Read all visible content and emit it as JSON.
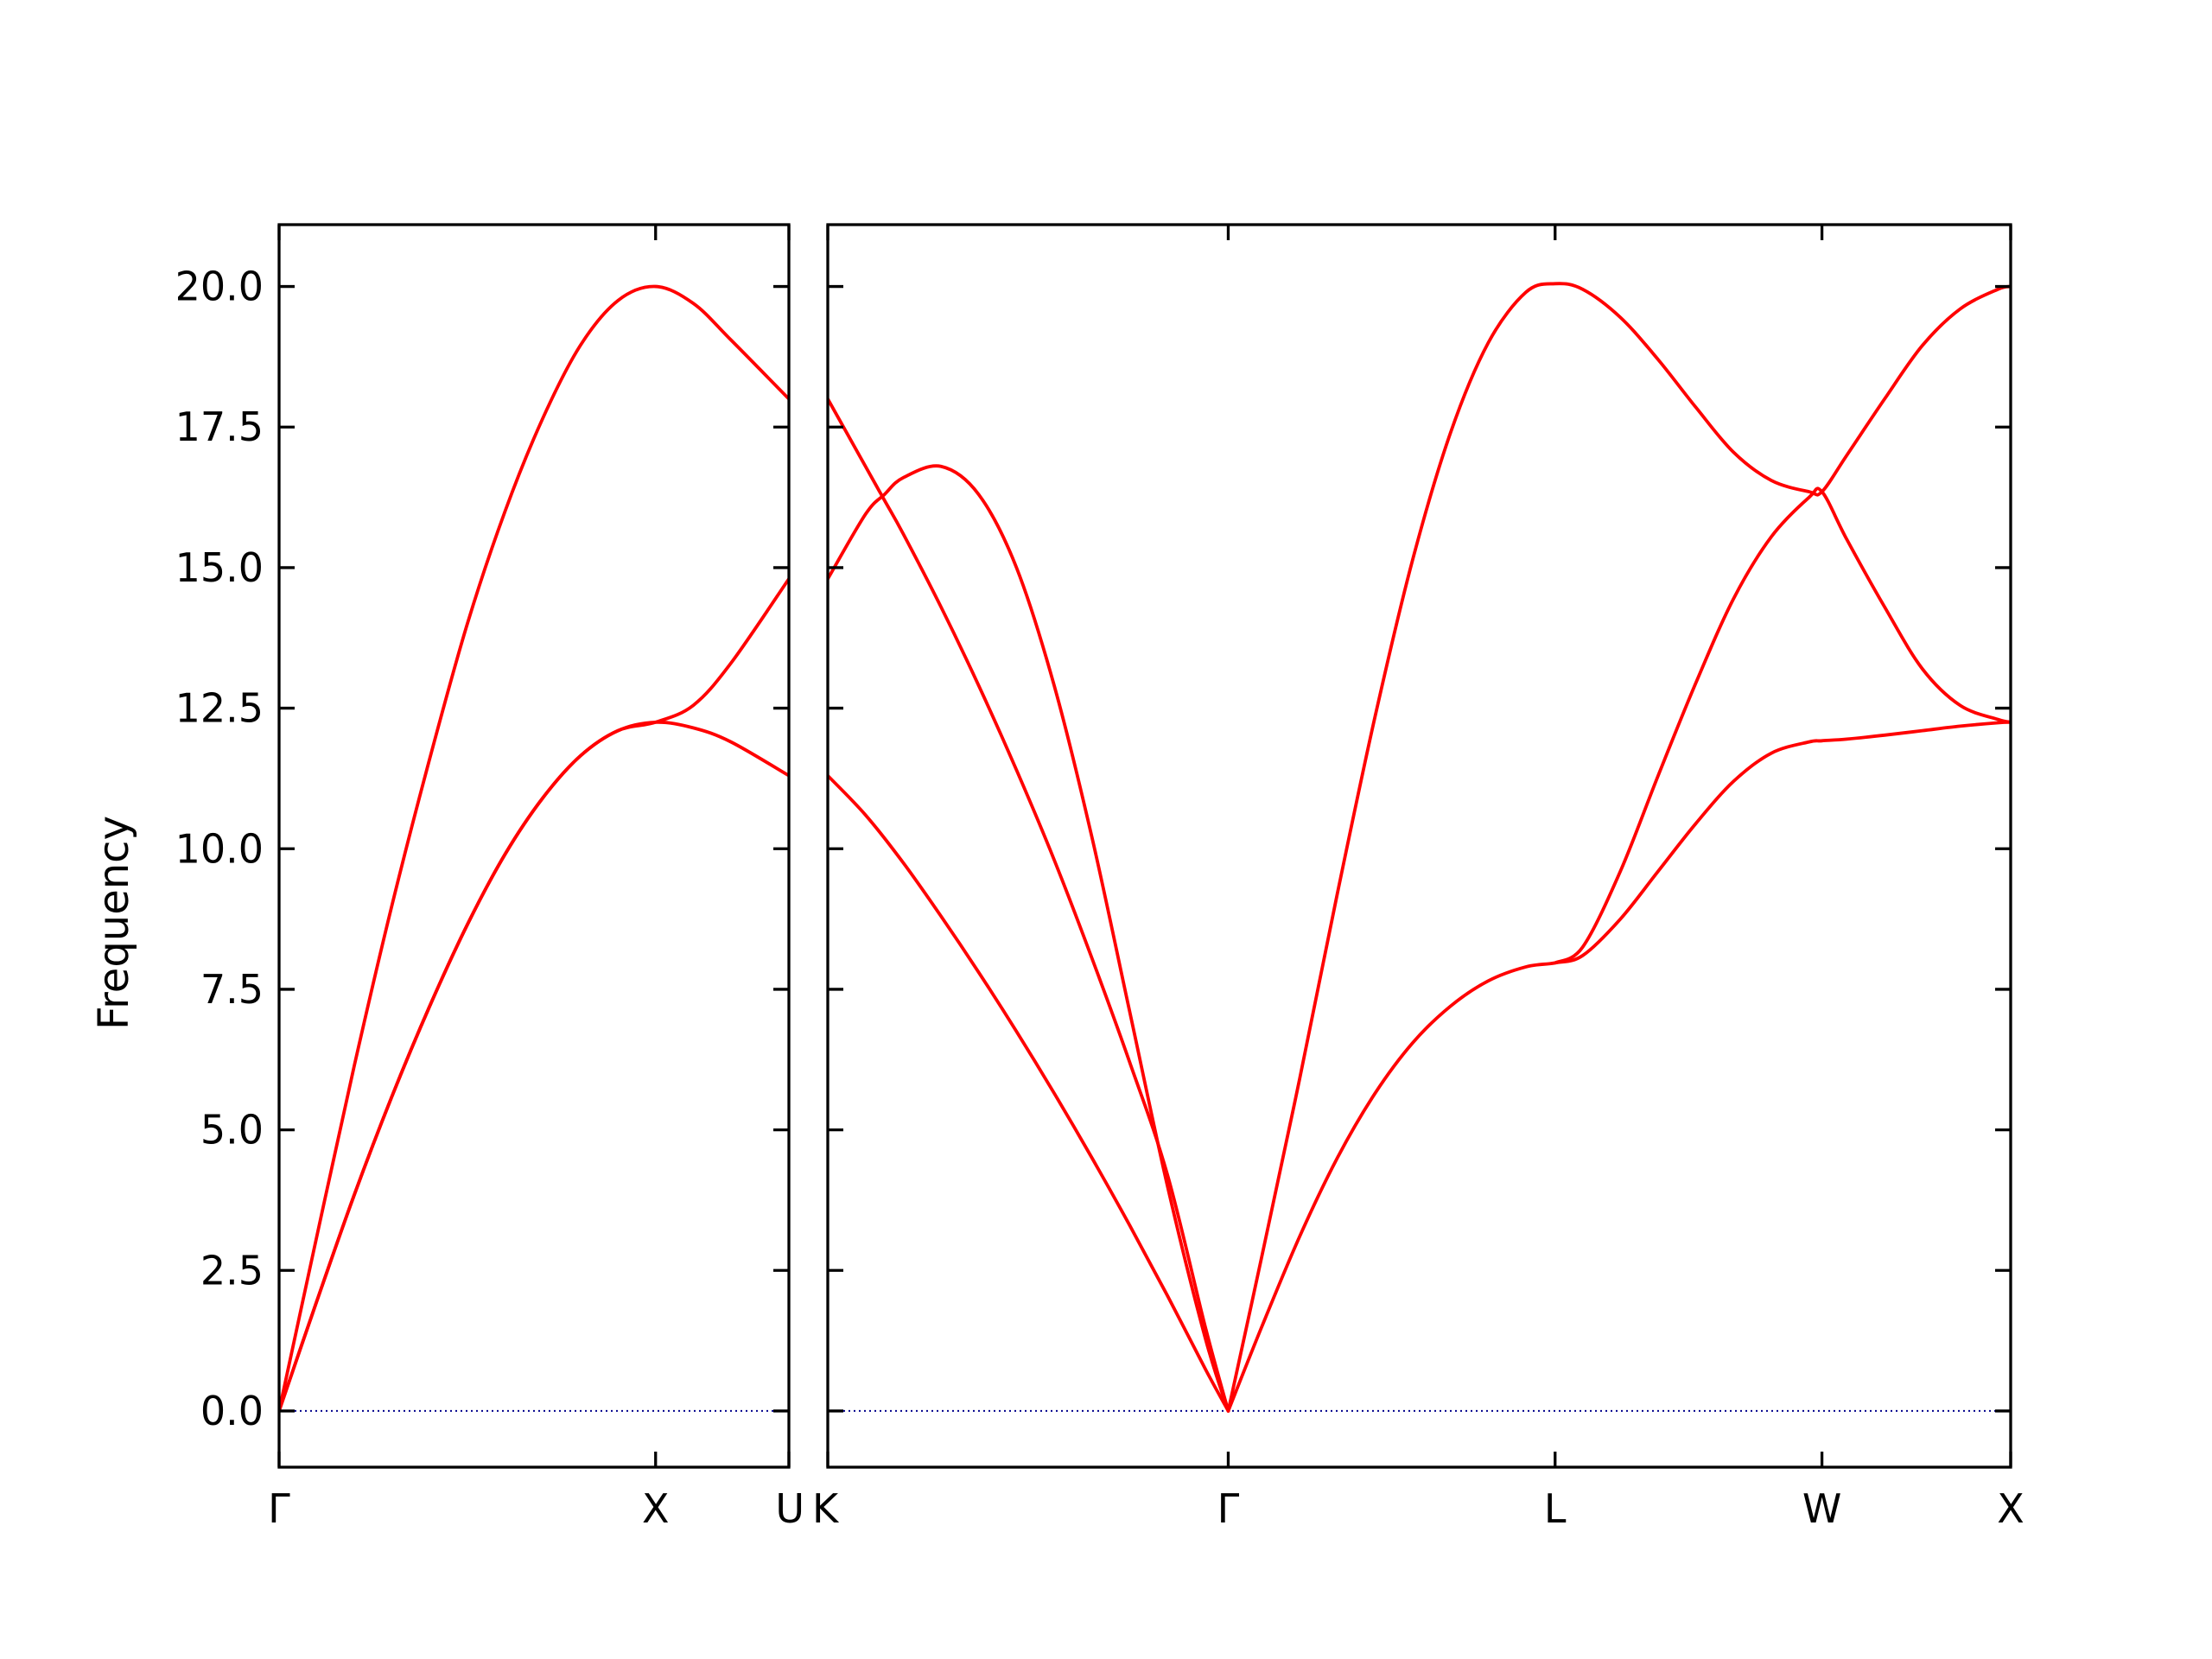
{
  "chart_data": {
    "type": "line",
    "title": "",
    "ylabel": "Frequency",
    "xlabel": "",
    "ylim": [
      -1,
      21.1
    ],
    "yticks": [
      0,
      2.5,
      5,
      7.5,
      10,
      12.5,
      15,
      17.5,
      20
    ],
    "ytick_labels": [
      "0.0",
      "2.5",
      "5.0",
      "7.5",
      "10.0",
      "12.5",
      "15.0",
      "17.5",
      "20.0"
    ],
    "grid": false,
    "colors": {
      "bands": "#ff0000",
      "zero_line": "#00008b"
    },
    "panels": [
      {
        "xticks": [
          {
            "label": "Γ",
            "x": 0
          },
          {
            "label": "X",
            "x": 1
          },
          {
            "label": "U",
            "x": 1.354
          }
        ],
        "xlim": [
          0,
          1.354
        ],
        "series": [
          {
            "x": [
              0,
              0.1,
              0.2,
              0.3,
              0.4,
              0.5,
              0.6,
              0.7,
              0.8,
              0.9,
              1.0,
              1.1,
              1.2,
              1.354
            ],
            "y": [
              0,
              3.1,
              6.15,
              9.0,
              11.6,
              14.0,
              16.0,
              17.65,
              18.95,
              19.75,
              20.0,
              19.7,
              19.05,
              18.0
            ]
          },
          {
            "x": [
              0,
              0.1,
              0.2,
              0.3,
              0.4,
              0.5,
              0.6,
              0.7,
              0.8,
              0.9,
              1.0,
              1.1,
              1.2,
              1.354
            ],
            "y": [
              0,
              1.95,
              3.85,
              5.6,
              7.2,
              8.65,
              9.9,
              10.9,
              11.65,
              12.1,
              12.25,
              12.55,
              13.3,
              14.8
            ]
          },
          {
            "x": [
              0,
              0.1,
              0.2,
              0.3,
              0.4,
              0.5,
              0.6,
              0.7,
              0.8,
              0.9,
              1.0,
              1.1,
              1.2,
              1.354
            ],
            "y": [
              0,
              1.95,
              3.85,
              5.6,
              7.2,
              8.65,
              9.9,
              10.9,
              11.65,
              12.1,
              12.25,
              12.15,
              11.9,
              11.3
            ]
          }
        ]
      },
      {
        "xticks": [
          {
            "label": "K",
            "x": 0
          },
          {
            "label": "Γ",
            "x": 1.061
          },
          {
            "label": "L",
            "x": 1.927
          },
          {
            "label": "W",
            "x": 2.634
          },
          {
            "label": "X",
            "x": 3.134
          }
        ],
        "xlim": [
          0,
          3.134
        ],
        "series": [
          {
            "x": [
              0,
              0.1,
              0.15,
              0.2,
              0.3,
              0.4,
              0.5,
              0.6,
              0.7,
              0.8,
              0.9,
              1.0,
              1.061
            ],
            "y": [
              14.8,
              15.95,
              16.3,
              16.6,
              16.8,
              16.3,
              15.0,
              12.9,
              10.2,
              7.1,
              4.0,
              1.3,
              0
            ]
          },
          {
            "x": [
              0,
              0.1,
              0.15,
              0.2,
              0.3,
              0.4,
              0.5,
              0.6,
              0.7,
              0.8,
              0.9,
              1.0,
              1.061
            ],
            "y": [
              18.0,
              16.8,
              16.2,
              15.6,
              14.3,
              12.9,
              11.4,
              9.8,
              8.05,
              6.2,
              4.2,
              1.5,
              0
            ]
          },
          {
            "x": [
              0,
              0.1,
              0.2,
              0.3,
              0.4,
              0.5,
              0.6,
              0.7,
              0.8,
              0.9,
              1.0,
              1.061
            ],
            "y": [
              11.3,
              10.6,
              9.75,
              8.8,
              7.8,
              6.75,
              5.65,
              4.5,
              3.3,
              2.05,
              0.75,
              0
            ]
          },
          {
            "x": [
              1.061,
              1.15,
              1.25,
              1.35,
              1.45,
              1.55,
              1.65,
              1.75,
              1.85,
              1.927,
              2.0,
              2.1,
              2.2,
              2.3,
              2.4,
              2.5,
              2.6,
              2.634,
              2.7,
              2.8,
              2.9,
              3.0,
              3.1,
              3.134
            ],
            "y": [
              0,
              2.75,
              5.9,
              9.2,
              12.35,
              15.15,
              17.4,
              19.0,
              19.9,
              20.05,
              19.95,
              19.45,
              18.7,
              17.85,
              17.05,
              16.55,
              16.35,
              16.35,
              17.0,
              18.0,
              18.95,
              19.6,
              19.95,
              20.0
            ]
          },
          {
            "x": [
              1.927,
              2.0,
              2.1,
              2.2,
              2.3,
              2.4,
              2.5,
              2.6,
              2.634,
              2.7,
              2.8,
              2.9,
              3.0,
              3.1,
              3.134
            ],
            "y": [
              7.97,
              8.25,
              9.6,
              11.3,
              12.95,
              14.45,
              15.55,
              16.25,
              16.35,
              15.5,
              14.3,
              13.2,
              12.55,
              12.3,
              12.25
            ]
          },
          {
            "x": [
              1.061,
              1.15,
              1.25,
              1.35,
              1.45,
              1.55,
              1.65,
              1.75,
              1.85,
              1.927,
              2.0,
              2.1,
              2.2,
              2.3,
              2.4,
              2.5,
              2.6,
              2.634,
              2.7,
              2.8,
              2.9,
              3.0,
              3.1,
              3.134
            ],
            "y": [
              0,
              1.5,
              3.1,
              4.5,
              5.65,
              6.55,
              7.2,
              7.65,
              7.9,
              7.97,
              8.1,
              8.75,
              9.6,
              10.45,
              11.2,
              11.7,
              11.9,
              11.92,
              11.95,
              12.02,
              12.1,
              12.18,
              12.24,
              12.25
            ]
          }
        ]
      }
    ]
  }
}
